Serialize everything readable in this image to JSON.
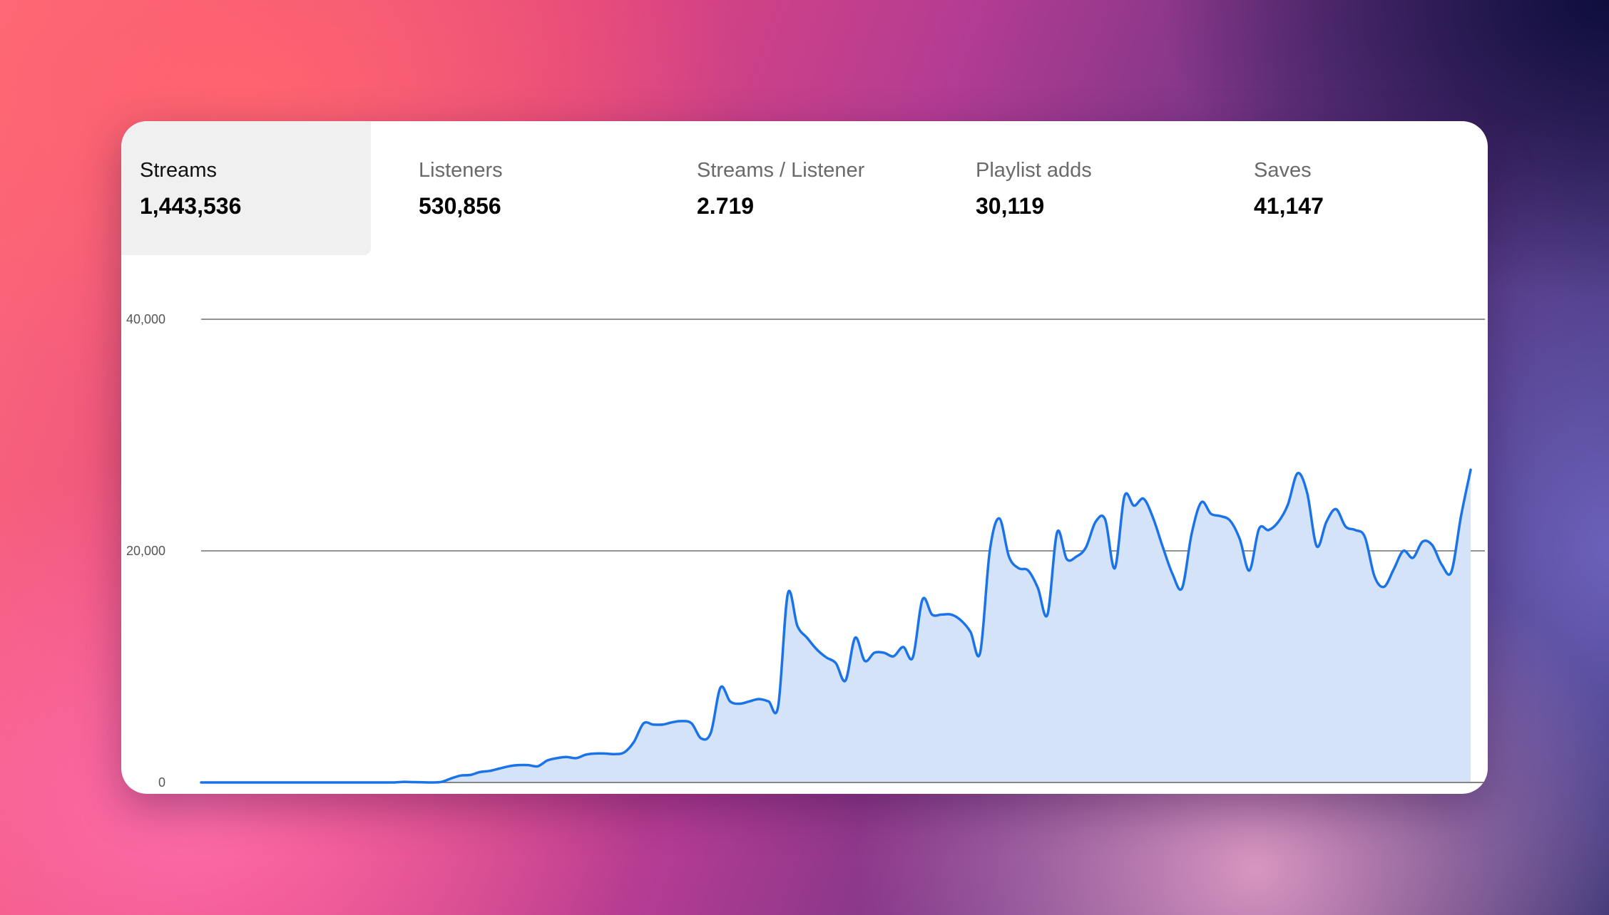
{
  "tabs": [
    {
      "label": "Streams",
      "value": "1,443,536",
      "active": true
    },
    {
      "label": "Listeners",
      "value": "530,856",
      "active": false
    },
    {
      "label": "Streams / Listener",
      "value": "2.719",
      "active": false
    },
    {
      "label": "Playlist adds",
      "value": "30,119",
      "active": false
    },
    {
      "label": "Saves",
      "value": "41,147",
      "active": false
    }
  ],
  "chart_data": {
    "type": "area",
    "ylim": [
      0,
      40000
    ],
    "y_ticks": [
      {
        "value": 0,
        "label": "0"
      },
      {
        "value": 20000,
        "label": "20,000"
      },
      {
        "value": 40000,
        "label": "40,000"
      }
    ],
    "series": [
      {
        "line_color": "#1a73e8",
        "fill_color": "#d4e3f7",
        "values": [
          0,
          0,
          0,
          0,
          0,
          0,
          0,
          0,
          0,
          0,
          0,
          0,
          0,
          0,
          0,
          0,
          0,
          0,
          0,
          0,
          0,
          50,
          30,
          20,
          0,
          50,
          350,
          600,
          650,
          900,
          1000,
          1200,
          1400,
          1500,
          1500,
          1400,
          1900,
          2100,
          2200,
          2100,
          2400,
          2500,
          2500,
          2450,
          2600,
          3500,
          5100,
          5000,
          5000,
          5200,
          5300,
          5100,
          3800,
          4300,
          8200,
          7000,
          6800,
          7000,
          7200,
          7000,
          6600,
          16300,
          13500,
          12500,
          11500,
          10800,
          10300,
          8800,
          12500,
          10500,
          11200,
          11200,
          10900,
          11700,
          10800,
          15800,
          14500,
          14500,
          14500,
          14000,
          13000,
          11200,
          20000,
          22800,
          19500,
          18500,
          18300,
          16800,
          14500,
          21600,
          19300,
          19500,
          20300,
          22500,
          22700,
          18500,
          24700,
          23900,
          24500,
          22800,
          20300,
          18000,
          16800,
          21500,
          24200,
          23200,
          23000,
          22600,
          21000,
          18300,
          21900,
          21800,
          22500,
          24000,
          26700,
          25000,
          20400,
          22500,
          23600,
          22100,
          21800,
          21200,
          17800,
          16900,
          18400,
          20000,
          19400,
          20800,
          20500,
          18800,
          18200,
          23000,
          27000
        ]
      }
    ]
  }
}
